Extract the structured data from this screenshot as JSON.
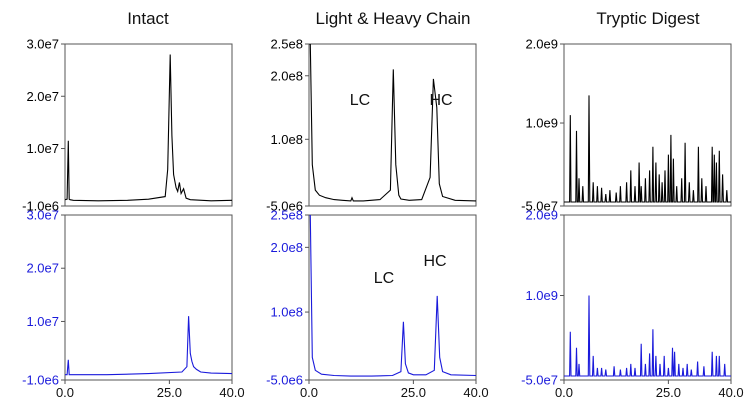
{
  "colors": {
    "top_trace": "#000000",
    "bottom_trace": "#1a1adb",
    "frame": "#555555",
    "top_tick_label": "#000000",
    "bottom_tick_label": "#1a1adb"
  },
  "chart_data": [
    {
      "type": "line",
      "title": "Intact",
      "xlim": [
        0,
        40
      ],
      "x_ticks": [
        "0.0",
        "25.0",
        "40.0"
      ],
      "panels": [
        {
          "trace": "black",
          "ylim": [
            -1000000,
            30000000
          ],
          "y_ticks": [
            "3.0e7",
            "2.0e7",
            "1.0e7",
            "-1.0e6"
          ],
          "x": [
            0,
            0.5,
            0.8,
            1.0,
            1.2,
            2,
            8,
            15,
            20,
            24,
            24.6,
            25.2,
            25.6,
            26.0,
            26.6,
            27.0,
            27.4,
            27.8,
            28.4,
            29,
            30,
            35,
            40
          ],
          "y": [
            200000,
            300000,
            11500000,
            300000,
            200000,
            100000,
            0,
            100000,
            300000,
            800000,
            6000000,
            28000000,
            12500000,
            5000000,
            2500000,
            1800000,
            3500000,
            1400000,
            2300000,
            500000,
            200000,
            0,
            100000
          ]
        },
        {
          "trace": "blue",
          "ylim": [
            -1000000,
            30000000
          ],
          "y_ticks": [
            "3.0e7",
            "2.0e7",
            "1.0e7",
            "-1.0e6"
          ],
          "x": [
            0,
            0.5,
            0.8,
            1.0,
            1.2,
            2,
            10,
            20,
            28,
            29.2,
            29.6,
            30.0,
            30.4,
            30.8,
            31.5,
            32.5,
            35,
            40
          ],
          "y": [
            0,
            0,
            2800000,
            0,
            0,
            0,
            0,
            200000,
            500000,
            1500000,
            11000000,
            4000000,
            2500000,
            1500000,
            1000000,
            500000,
            300000,
            200000
          ]
        }
      ]
    },
    {
      "type": "line",
      "title": "Light & Heavy Chain",
      "xlim": [
        0,
        40
      ],
      "x_ticks": [
        "0.0",
        "25.0",
        "40.0"
      ],
      "annotations": [
        "LC",
        "HC",
        "LC",
        "HC"
      ],
      "panels": [
        {
          "trace": "black",
          "ylim": [
            -5000000,
            250000000
          ],
          "y_ticks": [
            "2.5e8",
            "2.0e8",
            "1.0e8",
            "-5.0e6"
          ],
          "x": [
            0,
            0.3,
            0.8,
            1.5,
            2.5,
            4,
            6,
            8,
            10,
            10.3,
            10.6,
            13,
            17,
            19.5,
            20.2,
            20.8,
            21.5,
            22,
            24,
            27,
            29,
            29.8,
            30.6,
            31.2,
            32,
            35,
            40
          ],
          "y": [
            250000000,
            250000000,
            60000000,
            20000000,
            12000000,
            8000000,
            5000000,
            4000000,
            3000000,
            8000000,
            3000000,
            3000000,
            5000000,
            20000000,
            210000000,
            60000000,
            12000000,
            6000000,
            4000000,
            5000000,
            40000000,
            195000000,
            150000000,
            30000000,
            10000000,
            4000000,
            3000000
          ]
        },
        {
          "trace": "blue",
          "ylim": [
            -5000000,
            250000000
          ],
          "y_ticks": [
            "2.5e8",
            "2.0e8",
            "1.0e8",
            "-5.0e6"
          ],
          "x": [
            0,
            0.3,
            0.8,
            1.5,
            3,
            6,
            10,
            15,
            20,
            22,
            22.6,
            23.1,
            23.8,
            25,
            28,
            30,
            30.7,
            31.3,
            32,
            34,
            40
          ],
          "y": [
            250000000,
            250000000,
            30000000,
            10000000,
            4000000,
            2000000,
            1000000,
            1000000,
            2000000,
            8000000,
            85000000,
            20000000,
            6000000,
            3000000,
            3000000,
            10000000,
            125000000,
            30000000,
            8000000,
            3000000,
            2000000
          ]
        }
      ]
    },
    {
      "type": "line",
      "title": "Tryptic Digest",
      "xlim": [
        0,
        40
      ],
      "x_ticks": [
        "0.0",
        "25.0",
        "40.0"
      ],
      "panels": [
        {
          "trace": "black",
          "ylim": [
            -50000000,
            2000000000
          ],
          "y_ticks": [
            "2.0e9",
            "1.0e9",
            "-5.0e7"
          ],
          "spikes": [
            [
              1.5,
              1100000000
            ],
            [
              3,
              900000000
            ],
            [
              3.6,
              300000000
            ],
            [
              4.5,
              200000000
            ],
            [
              6,
              1350000000
            ],
            [
              7,
              250000000
            ],
            [
              8,
              200000000
            ],
            [
              9,
              180000000
            ],
            [
              10,
              100000000
            ],
            [
              11,
              150000000
            ],
            [
              12.5,
              120000000
            ],
            [
              13.5,
              200000000
            ],
            [
              15,
              250000000
            ],
            [
              16,
              400000000
            ],
            [
              17,
              200000000
            ],
            [
              18,
              500000000
            ],
            [
              18.5,
              200000000
            ],
            [
              19.5,
              300000000
            ],
            [
              20.5,
              400000000
            ],
            [
              21.3,
              700000000
            ],
            [
              22,
              500000000
            ],
            [
              22.8,
              350000000
            ],
            [
              23.5,
              250000000
            ],
            [
              24.2,
              400000000
            ],
            [
              25,
              600000000
            ],
            [
              25.6,
              850000000
            ],
            [
              26.2,
              550000000
            ],
            [
              27,
              200000000
            ],
            [
              28.2,
              300000000
            ],
            [
              29,
              750000000
            ],
            [
              30,
              250000000
            ],
            [
              31,
              150000000
            ],
            [
              32.2,
              700000000
            ],
            [
              33,
              300000000
            ],
            [
              34,
              200000000
            ],
            [
              35.5,
              700000000
            ],
            [
              36,
              600000000
            ],
            [
              36.5,
              500000000
            ],
            [
              37.2,
              650000000
            ],
            [
              38,
              350000000
            ],
            [
              39,
              150000000
            ]
          ]
        },
        {
          "trace": "blue",
          "ylim": [
            -50000000,
            2000000000
          ],
          "y_ticks": [
            "2.0e9",
            "1.0e9",
            "-5.0e7"
          ],
          "spikes": [
            [
              1.5,
              550000000
            ],
            [
              3,
              350000000
            ],
            [
              3.6,
              150000000
            ],
            [
              6,
              1000000000
            ],
            [
              7,
              250000000
            ],
            [
              8,
              100000000
            ],
            [
              9,
              100000000
            ],
            [
              10,
              80000000
            ],
            [
              12,
              120000000
            ],
            [
              13.5,
              80000000
            ],
            [
              15,
              100000000
            ],
            [
              16,
              150000000
            ],
            [
              17,
              100000000
            ],
            [
              18.5,
              400000000
            ],
            [
              19.5,
              150000000
            ],
            [
              20.5,
              280000000
            ],
            [
              21.3,
              580000000
            ],
            [
              22,
              250000000
            ],
            [
              23,
              150000000
            ],
            [
              24,
              250000000
            ],
            [
              25,
              100000000
            ],
            [
              26,
              350000000
            ],
            [
              26.5,
              300000000
            ],
            [
              27.5,
              150000000
            ],
            [
              28.5,
              100000000
            ],
            [
              29.5,
              150000000
            ],
            [
              30.5,
              80000000
            ],
            [
              32,
              180000000
            ],
            [
              33.5,
              120000000
            ],
            [
              35.5,
              300000000
            ],
            [
              36.5,
              250000000
            ],
            [
              37.2,
              250000000
            ],
            [
              38.5,
              150000000
            ]
          ]
        }
      ]
    }
  ]
}
